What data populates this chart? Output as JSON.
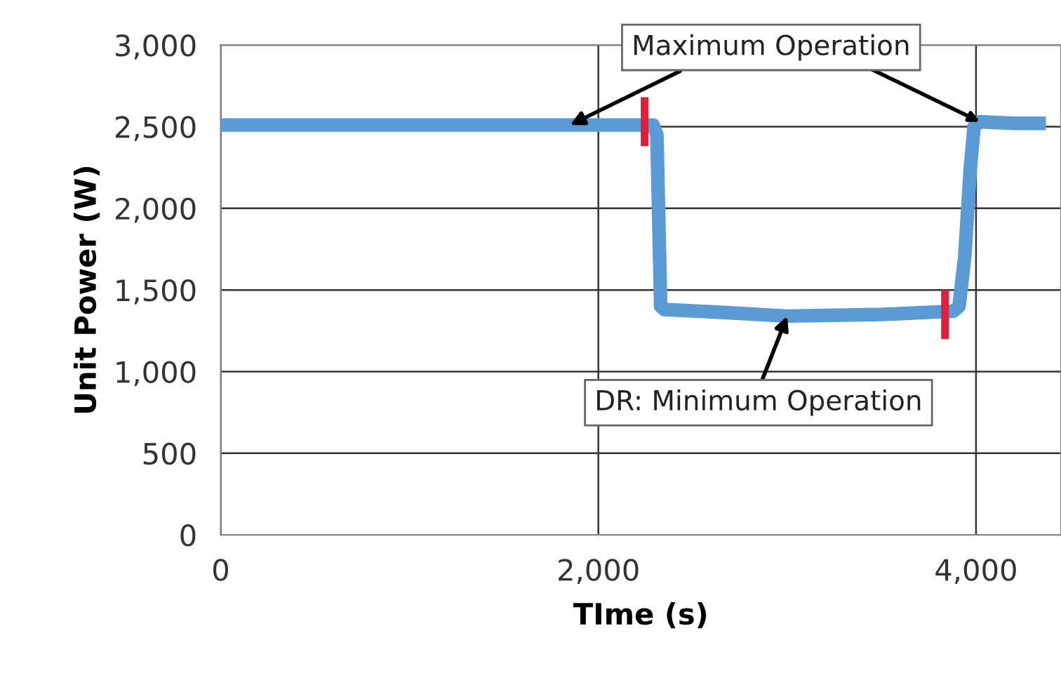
{
  "chart_data": {
    "type": "line",
    "xlabel": "TIme (s)",
    "ylabel": "Unit Power (W)",
    "xlim": [
      0,
      4450
    ],
    "ylim": [
      0,
      3000
    ],
    "xticks": [
      0,
      {
        "value": 2000,
        "label": "2,000"
      },
      {
        "value": 4000,
        "label": "4,000"
      }
    ],
    "yticks": [
      0,
      500,
      {
        "value": 1000,
        "label": "1,000"
      },
      {
        "value": 1500,
        "label": "1,500"
      },
      {
        "value": 2000,
        "label": "2,000"
      },
      {
        "value": 2500,
        "label": "2,500"
      },
      {
        "value": 3000,
        "label": "3,000"
      }
    ],
    "grid": true,
    "marker": "none",
    "line_style": "solid",
    "series": [
      {
        "color": "#5b9bd5",
        "x": [
          0,
          500,
          1000,
          1500,
          2000,
          2290,
          2310,
          2330,
          2350,
          2700,
          3000,
          3500,
          3880,
          3910,
          3940,
          3970,
          3990,
          4020,
          4200,
          4370
        ],
        "values": [
          2510,
          2510,
          2510,
          2510,
          2510,
          2510,
          2450,
          1400,
          1380,
          1360,
          1340,
          1350,
          1370,
          1400,
          1700,
          2250,
          2500,
          2530,
          2520,
          2520
        ]
      },
      {
        "color": "#e0203a",
        "x": [
          2245,
          2245
        ],
        "values": [
          2380,
          2680
        ]
      },
      {
        "color": "#e0203a",
        "x": [
          3836,
          3836
        ],
        "values": [
          1200,
          1500
        ]
      }
    ],
    "annotations": [
      {
        "text": "Maximum Operation",
        "x": 1850,
        "y": 2510
      },
      {
        "text": "DR: Minimum Operation",
        "x": 3000,
        "y": 1340
      }
    ]
  }
}
